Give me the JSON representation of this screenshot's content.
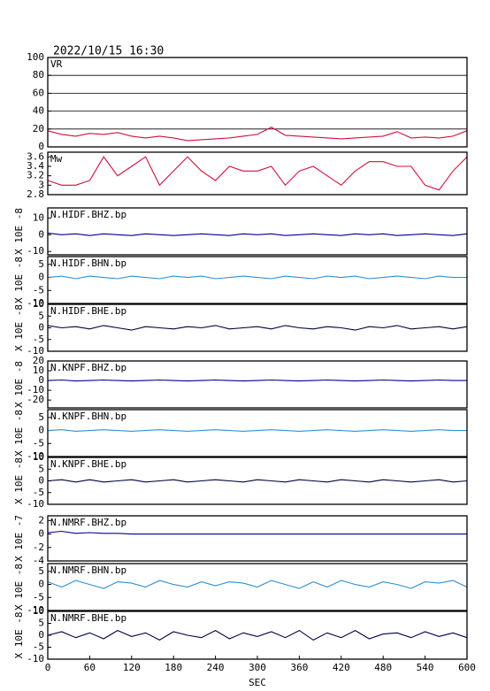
{
  "title": "2022/10/15 16:30",
  "x_axis": {
    "label": "SEC",
    "xlim": [
      0,
      600
    ],
    "xticks": [
      0,
      60,
      120,
      180,
      240,
      300,
      360,
      420,
      480,
      540,
      600
    ],
    "x": [
      0,
      20,
      40,
      60,
      80,
      100,
      120,
      140,
      160,
      180,
      200,
      220,
      240,
      260,
      280,
      300,
      320,
      340,
      360,
      380,
      400,
      420,
      440,
      460,
      480,
      500,
      520,
      540,
      560,
      580,
      600
    ]
  },
  "chart_data": [
    {
      "type": "line",
      "label": "VR",
      "color": "#d0103a",
      "grid": true,
      "ylim": [
        0,
        100
      ],
      "yticks": [
        0,
        20,
        40,
        60,
        80,
        100
      ],
      "values": [
        18,
        14,
        12,
        15,
        14,
        16,
        12,
        10,
        12,
        10,
        7,
        8,
        9,
        10,
        12,
        14,
        22,
        13,
        12,
        11,
        10,
        9,
        10,
        11,
        12,
        17,
        10,
        11,
        10,
        12,
        18
      ]
    },
    {
      "type": "line",
      "label": "Mw",
      "color": "#d0103a",
      "ylim": [
        2.8,
        3.7
      ],
      "yticks": [
        2.8,
        3.0,
        3.2,
        3.4,
        3.6
      ],
      "values": [
        3.1,
        3.0,
        3.0,
        3.1,
        3.6,
        3.2,
        3.4,
        3.6,
        3.0,
        3.3,
        3.6,
        3.3,
        3.1,
        3.4,
        3.3,
        3.3,
        3.4,
        3.0,
        3.3,
        3.4,
        3.2,
        3.0,
        3.3,
        3.5,
        3.5,
        3.4,
        3.4,
        3.0,
        2.9,
        3.3,
        3.6
      ]
    },
    {
      "type": "line",
      "label": "N.HIDF.BHZ.bp",
      "ylabel": "X 10E -8",
      "color": "#000090",
      "ylim": [
        -12,
        16
      ],
      "yticks": [
        -10,
        0,
        10
      ],
      "values": [
        1,
        0,
        0.5,
        -0.5,
        0.5,
        0,
        -0.5,
        0.5,
        0,
        -0.5,
        0,
        0.5,
        0,
        -0.5,
        0.5,
        0,
        0.5,
        -0.5,
        0,
        0.5,
        0,
        -0.5,
        0.5,
        0,
        0.5,
        -0.5,
        0,
        0.5,
        0,
        -0.5,
        0.5
      ]
    },
    {
      "type": "line",
      "label": "N.HIDF.BHN.bp",
      "ylabel": "X 10E -8",
      "color": "#3090d0",
      "ylim": [
        -10,
        8
      ],
      "yticks": [
        -10,
        -5,
        0,
        5
      ],
      "values": [
        0,
        0.5,
        -0.5,
        0.5,
        0,
        -0.5,
        0.5,
        0,
        -0.5,
        0.5,
        0,
        0.5,
        -0.5,
        0,
        0.5,
        0,
        -0.5,
        0.5,
        0,
        -0.5,
        0.5,
        0,
        0.5,
        -0.5,
        0,
        0.5,
        0,
        -0.5,
        0.5,
        0,
        0
      ]
    },
    {
      "type": "line",
      "label": "N.HIDF.BHE.bp",
      "ylabel": "X 10E -8",
      "color": "#000040",
      "ylim": [
        -10,
        10
      ],
      "yticks": [
        -10,
        -5,
        0,
        5,
        10
      ],
      "values": [
        1,
        0,
        0.5,
        -0.5,
        1,
        0,
        -1,
        0.5,
        0,
        -0.5,
        0.5,
        0,
        1,
        -0.5,
        0,
        0.5,
        -0.5,
        1,
        0,
        -0.5,
        0.5,
        0,
        -1,
        0.5,
        0,
        1,
        -0.5,
        0,
        0.5,
        -0.5,
        0.5
      ]
    },
    {
      "type": "line",
      "label": "N.KNPF.BHZ.bp",
      "ylabel": "X 10E -8",
      "color": "#000090",
      "ylim": [
        -28,
        20
      ],
      "yticks": [
        -20,
        -10,
        0,
        10,
        20
      ],
      "values": [
        0,
        0.5,
        -0.5,
        0,
        0.5,
        0,
        -0.5,
        0,
        0.5,
        0,
        -0.5,
        0,
        0.5,
        0,
        -0.5,
        0,
        0.5,
        0,
        -0.5,
        0,
        0.5,
        0,
        -0.5,
        0,
        0.5,
        0,
        -0.5,
        0,
        0.5,
        0,
        0
      ]
    },
    {
      "type": "line",
      "label": "N.KNPF.BHN.bp",
      "ylabel": "X 10E -8",
      "color": "#3090d0",
      "ylim": [
        -10,
        8
      ],
      "yticks": [
        -10,
        -5,
        0,
        5
      ],
      "values": [
        0,
        0.3,
        -0.3,
        0,
        0.3,
        0,
        -0.3,
        0,
        0.3,
        0,
        -0.3,
        0,
        0.3,
        0,
        -0.3,
        0,
        0.3,
        0,
        -0.3,
        0,
        0.3,
        0,
        -0.3,
        0,
        0.3,
        0,
        -0.3,
        0,
        0.3,
        0,
        0
      ]
    },
    {
      "type": "line",
      "label": "N.KNPF.BHE.bp",
      "ylabel": "X 10E -8",
      "color": "#000040",
      "ylim": [
        -10,
        10
      ],
      "yticks": [
        -10,
        -5,
        0,
        5,
        10
      ],
      "values": [
        0,
        0.5,
        -0.5,
        0.5,
        -0.5,
        0,
        0.5,
        -0.5,
        0,
        0.5,
        -0.5,
        0,
        0.5,
        0,
        -0.5,
        0.5,
        0,
        -0.5,
        0.5,
        0,
        -0.5,
        0.5,
        0,
        -0.5,
        0.5,
        0,
        -0.5,
        0,
        0.5,
        -0.5,
        0
      ]
    },
    {
      "type": "line",
      "label": "N.NMRF.BHZ.bp",
      "ylabel": "X 10E -7",
      "color": "#000090",
      "ylim": [
        -4,
        2.7
      ],
      "yticks": [
        -4,
        -2,
        0,
        2
      ],
      "values": [
        0.2,
        0.4,
        0.1,
        0.2,
        0.1,
        0.1,
        0,
        0,
        0,
        0,
        0,
        0,
        0,
        0,
        0,
        0,
        0,
        0,
        0,
        0,
        0,
        0,
        0,
        0,
        0,
        0,
        0,
        0,
        0,
        0,
        0
      ]
    },
    {
      "type": "line",
      "label": "N.NMRF.BHN.bp",
      "ylabel": "X 10E -8",
      "color": "#3090d0",
      "ylim": [
        -10,
        8
      ],
      "yticks": [
        -10,
        -5,
        0,
        5
      ],
      "values": [
        1,
        -1,
        1.5,
        0,
        -1.5,
        1,
        0.5,
        -1,
        1.5,
        0,
        -1,
        1,
        -0.5,
        1,
        0.5,
        -1,
        1.5,
        0,
        -1.5,
        1,
        -1,
        1.5,
        0,
        -1,
        1,
        0,
        -1.5,
        1,
        0.5,
        1.5,
        -1
      ]
    },
    {
      "type": "line",
      "label": "N.NMRF.BHE.bp",
      "ylabel": "X 10E -8",
      "color": "#000040",
      "ylim": [
        -10,
        10
      ],
      "yticks": [
        -10,
        -5,
        0,
        5,
        10
      ],
      "values": [
        0,
        1.5,
        -1,
        1,
        -1.5,
        2,
        -0.5,
        1,
        -2,
        1.5,
        0,
        -1,
        2,
        -1.5,
        1,
        -0.5,
        1.5,
        -1,
        2,
        -2,
        1,
        -1,
        2,
        -1.5,
        0.5,
        1,
        -1,
        1.5,
        -0.5,
        1,
        -1
      ]
    }
  ]
}
